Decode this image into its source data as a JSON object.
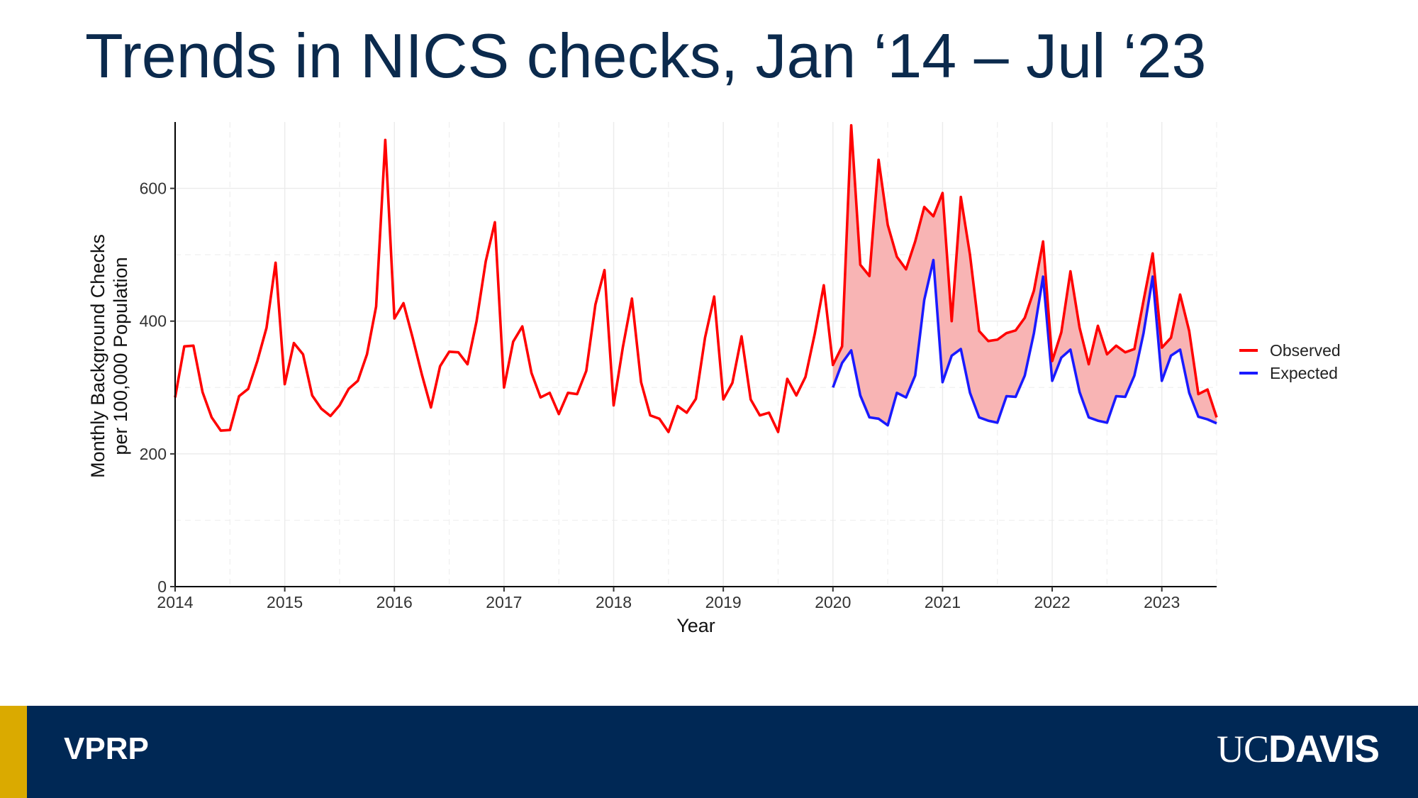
{
  "slide": {
    "title": "Trends in NICS checks, Jan ‘14 – Jul ‘23",
    "footer_left": "VPRP",
    "logo_uc": "UC",
    "logo_davis": "DAVIS"
  },
  "colors": {
    "observed": "#ff0000",
    "expected": "#1a1aff",
    "gap_fill": "#f8b4b4",
    "footer_bg": "#002855",
    "footer_accent": "#daaa00",
    "title": "#0b2a4d"
  },
  "chart_data": {
    "type": "line",
    "title": "",
    "xlabel": "Year",
    "ylabel": "Monthly Background Checks\nper 100,000 Population",
    "ylabel_lines": [
      "Monthly Background Checks",
      "per 100,000 Population"
    ],
    "xlim": [
      2014,
      2023.5
    ],
    "ylim": [
      0,
      700
    ],
    "x_ticks": [
      2014,
      2015,
      2016,
      2017,
      2018,
      2019,
      2020,
      2021,
      2022,
      2023
    ],
    "x_tick_labels": [
      "2014",
      "2015",
      "2016",
      "2017",
      "2018",
      "2019",
      "2020",
      "2021",
      "2022",
      "2023"
    ],
    "y_ticks": [
      0,
      200,
      400,
      600
    ],
    "y_tick_labels": [
      "0",
      "200",
      "400",
      "600"
    ],
    "grid": true,
    "legend_position": "right",
    "shaded_region": "between Observed and Expected, 2020 onward",
    "series": [
      {
        "name": "Observed",
        "color": "#ff0000",
        "start": 2014,
        "step": 0.08333,
        "values": [
          285,
          362,
          363,
          293,
          255,
          235,
          236,
          287,
          298,
          340,
          390,
          488,
          305,
          367,
          350,
          288,
          268,
          257,
          273,
          298,
          310,
          350,
          422,
          673,
          404,
          427,
          375,
          320,
          270,
          332,
          354,
          353,
          335,
          400,
          490,
          549,
          300,
          369,
          392,
          322,
          285,
          292,
          260,
          292,
          290,
          325,
          425,
          477,
          273,
          360,
          434,
          308,
          258,
          253,
          233,
          272,
          262,
          283,
          375,
          437,
          282,
          307,
          377,
          282,
          258,
          262,
          233,
          313,
          288,
          316,
          380,
          454,
          334,
          362,
          695,
          485,
          468,
          643,
          545,
          497,
          478,
          520,
          572,
          558,
          593,
          400,
          587,
          500,
          385,
          370,
          372,
          382,
          386,
          405,
          446,
          520,
          340,
          383,
          475,
          390,
          335,
          393,
          350,
          363,
          353,
          358,
          431,
          502,
          360,
          375,
          440,
          385,
          290,
          297,
          255
        ],
        "expected_legend": "Observed"
      },
      {
        "name": "Expected",
        "color": "#1a1aff",
        "start": 2020,
        "step": 0.08333,
        "values": [
          300,
          337,
          356,
          288,
          255,
          253,
          243,
          292,
          285,
          318,
          432,
          492,
          308,
          348,
          358,
          292,
          255,
          250,
          247,
          287,
          286,
          318,
          382,
          467,
          310,
          345,
          357,
          293,
          255,
          250,
          247,
          287,
          286,
          318,
          382,
          467,
          310,
          348,
          357,
          292,
          256,
          252,
          246
        ]
      }
    ]
  }
}
